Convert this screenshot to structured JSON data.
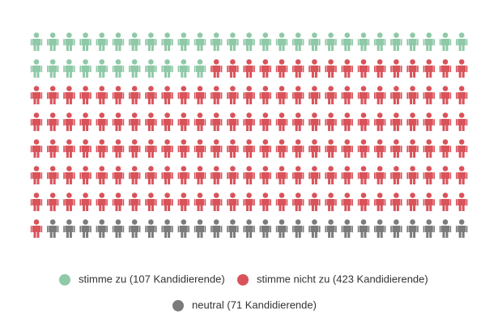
{
  "chart_data": {
    "type": "pictogram",
    "series": [
      {
        "name": "stimme zu (107 Kandidierende)",
        "color": "#8fc9a8",
        "values": 107
      },
      {
        "name": "stimme nicht zu (423 Kandidierende)",
        "color": "#d9535a",
        "values": 423
      },
      {
        "name": "neutral (71 Kandidierende)",
        "color": "#7b7b7b",
        "values": 71
      }
    ]
  }
}
